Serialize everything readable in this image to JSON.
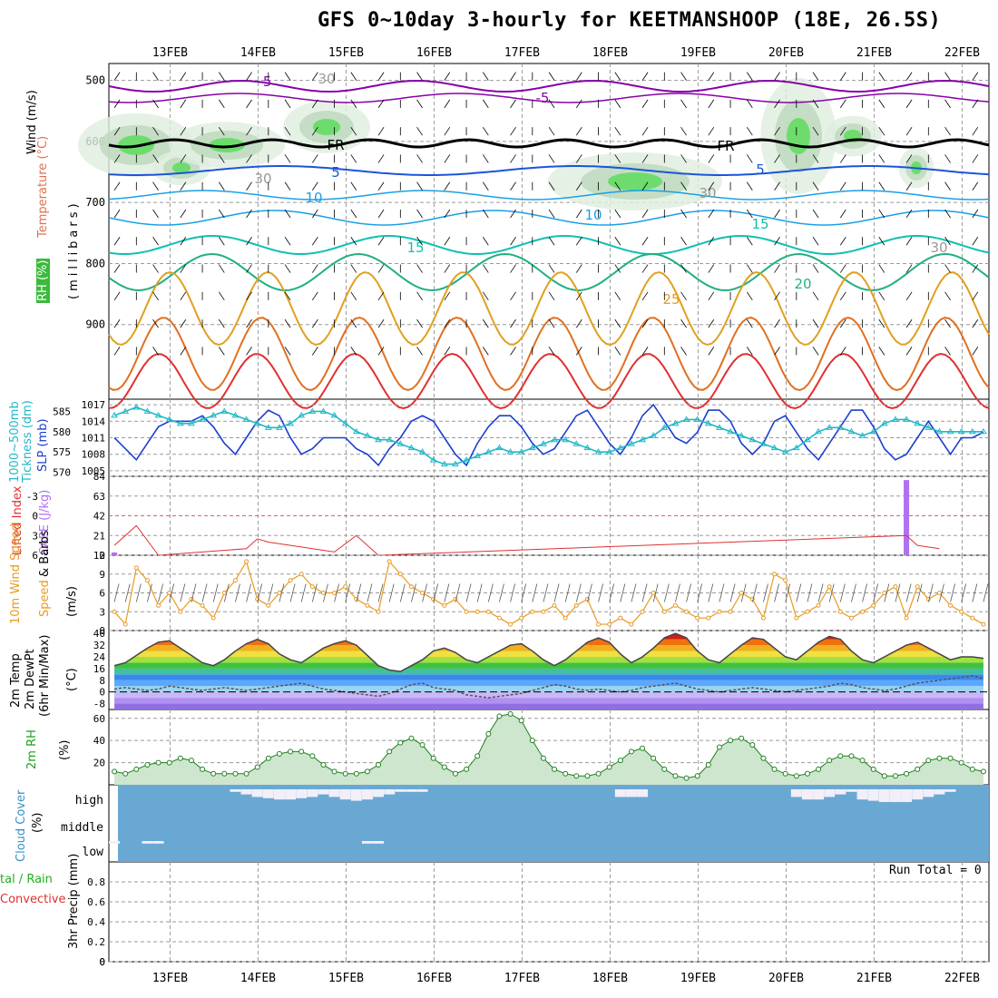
{
  "title": "GFS 0~10day 3-hourly for KEETMANSHOOP (18E, 26.5S)",
  "colors": {
    "grid": "#9a9a9a",
    "temp_cold": "#8800aa",
    "temp_5": "#1a55d9",
    "temp_10": "#1aa0e6",
    "temp_15": "#10c0b0",
    "temp_20": "#20b080",
    "temp_25": "#e0a020",
    "temp_30": "#e07020",
    "temp_35": "#e03030",
    "rh_fill": "#6ddc6d",
    "slp_line": "#1a3fcf",
    "thick_line": "#20b8c8",
    "cape_bar": "#b070f0",
    "li_line": "#e03030",
    "wind_line": "#e89a20",
    "cloud_bg": "#6aa8d4",
    "cloud_fill": "#f2eff8"
  },
  "axis": {
    "date_labels": [
      "13FEB",
      "14FEB",
      "15FEB",
      "16FEB",
      "17FEB",
      "18FEB",
      "19FEB",
      "20FEB",
      "21FEB",
      "22FEB"
    ],
    "time_steps": 80,
    "step_hours": 3
  },
  "panel_labels": {
    "upper_wind": "Wind (m/s)",
    "upper_temp": "Temperature (°C)",
    "upper_rh": "RH (%)",
    "upper_units": "(millibars)",
    "thickness": "1000~500mb Tickness (dm)",
    "slp": "SLP (mb)",
    "li": "Lifted Index",
    "cape": "CAPE (J/kg)",
    "wind10": "10m Wind Speed",
    "wind10_b": "& Barbs",
    "wind10_units": "(m/s)",
    "temp2m_a": "2m Temp",
    "temp2m_b": "2m DewPt",
    "temp2m_c": "(6hr Min/Max)",
    "temp2m_units": "(°C)",
    "rh2m": "2m RH",
    "rh2m_units": "(%)",
    "cloud": "Cloud Cover",
    "cloud_units": "(%)",
    "precip_a": "tal / Rain",
    "precip_b": "Convective",
    "precip_c": "3hr Precip (mm)",
    "run_total": "Run Total = 0"
  },
  "chart_data": [
    {
      "type": "contour",
      "name": "upper-air",
      "y_ticks": [
        500,
        600,
        700,
        800,
        900
      ],
      "ylim": [
        1000,
        450
      ],
      "contour_labels": [
        "-5",
        "-5",
        "FR",
        "FR",
        "5",
        "5",
        "10",
        "10",
        "15",
        "15",
        "20",
        "25",
        "30",
        "30",
        "30",
        "30"
      ]
    },
    {
      "type": "line",
      "name": "thickness-slp",
      "y_ticks_left": [
        570,
        575,
        580,
        585
      ],
      "y_ticks_right": [
        1005,
        1008,
        1011,
        1014,
        1017
      ],
      "series": [
        {
          "name": "SLP (mb)",
          "axis": "right",
          "values": [
            1011,
            1009,
            1007,
            1010,
            1013,
            1014,
            1014,
            1014,
            1015,
            1013,
            1010,
            1008,
            1011,
            1014,
            1016,
            1015,
            1011,
            1008,
            1009,
            1011,
            1011,
            1011,
            1009,
            1008,
            1006,
            1009,
            1011,
            1014,
            1015,
            1014,
            1011,
            1008,
            1006,
            1010,
            1013,
            1015,
            1015,
            1013,
            1010,
            1008,
            1009,
            1012,
            1015,
            1016,
            1013,
            1010,
            1008,
            1011,
            1015,
            1017,
            1014,
            1011,
            1010,
            1012,
            1016,
            1016,
            1014,
            1010,
            1008,
            1010,
            1014,
            1015,
            1012,
            1009,
            1007,
            1010,
            1013,
            1016,
            1016,
            1013,
            1009,
            1007,
            1008,
            1011,
            1014,
            1011,
            1008,
            1011,
            1011,
            1012
          ]
        },
        {
          "name": "1000~500mb Tickness (dm)",
          "axis": "left",
          "values": [
            584,
            585,
            586,
            585,
            584,
            583,
            582,
            582,
            583,
            584,
            585,
            584,
            583,
            582,
            581,
            581,
            582,
            584,
            585,
            585,
            584,
            582,
            580,
            579,
            578,
            578,
            577,
            576,
            575,
            573,
            572,
            572,
            573,
            574,
            575,
            576,
            575,
            575,
            576,
            577,
            578,
            578,
            577,
            576,
            575,
            575,
            576,
            577,
            578,
            579,
            581,
            582,
            583,
            583,
            582,
            581,
            580,
            579,
            578,
            577,
            576,
            575,
            576,
            578,
            580,
            581,
            581,
            580,
            579,
            580,
            582,
            583,
            583,
            582,
            581,
            580,
            580,
            580,
            580,
            580
          ]
        }
      ]
    },
    {
      "type": "bar",
      "name": "li-cape",
      "li_ticks": [
        6,
        3,
        0,
        -3
      ],
      "cape_ticks": [
        0,
        21,
        42,
        63,
        84
      ],
      "series": [
        {
          "name": "CAPE (J/kg)",
          "values_at_step": {
            "0": 3,
            "72": 80
          }
        },
        {
          "name": "Lifted Index",
          "values_at_step": {
            "0": 4.5,
            "2": 1.5,
            "4": 6,
            "12": 5,
            "13": 3.5,
            "14": 4,
            "20": 5.5,
            "22": 3,
            "24": 6,
            "72": 3,
            "73": 4.5,
            "75": 5
          }
        }
      ]
    },
    {
      "type": "line",
      "name": "wind10",
      "y_ticks": [
        0,
        3,
        6,
        9,
        12
      ],
      "ylim": [
        0,
        12
      ],
      "series": [
        {
          "name": "10m Wind Speed",
          "values": [
            3,
            1,
            10,
            8,
            4,
            6,
            3,
            5,
            4,
            2,
            6,
            8,
            11,
            5,
            4,
            6,
            8,
            9,
            7,
            6,
            6,
            7,
            5,
            4,
            3,
            11,
            9,
            7,
            6,
            5,
            4,
            5,
            3,
            3,
            3,
            2,
            1,
            2,
            3,
            3,
            4,
            2,
            4,
            5,
            1,
            1,
            2,
            1,
            3,
            6,
            3,
            4,
            3,
            2,
            2,
            3,
            3,
            6,
            5,
            2,
            9,
            8,
            2,
            3,
            4,
            7,
            3,
            2,
            3,
            4,
            6,
            7,
            2,
            7,
            5,
            6,
            4,
            3,
            2,
            1
          ]
        }
      ]
    },
    {
      "type": "area",
      "name": "temp2m",
      "y_ticks": [
        -8,
        0,
        8,
        16,
        24,
        32,
        40
      ],
      "ylim": [
        -12,
        42
      ],
      "series": [
        {
          "name": "2m Temp",
          "values": [
            18,
            20,
            25,
            30,
            34,
            35,
            30,
            25,
            20,
            18,
            22,
            28,
            33,
            36,
            33,
            26,
            22,
            20,
            25,
            30,
            33,
            35,
            32,
            25,
            18,
            15,
            14,
            18,
            22,
            28,
            30,
            27,
            22,
            20,
            24,
            28,
            32,
            33,
            28,
            22,
            18,
            22,
            28,
            34,
            37,
            34,
            26,
            20,
            24,
            30,
            37,
            40,
            37,
            28,
            22,
            20,
            26,
            32,
            37,
            36,
            30,
            24,
            22,
            28,
            34,
            38,
            36,
            28,
            22,
            20,
            24,
            28,
            32,
            34,
            30,
            26,
            22,
            24,
            24,
            23
          ]
        },
        {
          "name": "2m DewPt",
          "values": [
            2,
            3,
            2,
            1,
            2,
            4,
            3,
            2,
            1,
            2,
            3,
            2,
            1,
            2,
            3,
            4,
            5,
            6,
            4,
            2,
            1,
            0,
            -1,
            -2,
            -3,
            -1,
            2,
            5,
            6,
            3,
            2,
            1,
            -2,
            -3,
            -4,
            -3,
            -2,
            -1,
            1,
            3,
            5,
            4,
            2,
            1,
            2,
            1,
            0,
            1,
            3,
            4,
            5,
            6,
            4,
            2,
            1,
            0,
            1,
            2,
            3,
            2,
            1,
            0,
            1,
            2,
            3,
            4,
            6,
            5,
            3,
            2,
            1,
            2,
            4,
            6,
            7,
            8,
            9,
            10,
            11,
            9
          ]
        }
      ]
    },
    {
      "type": "area",
      "name": "rh2m",
      "y_ticks": [
        20,
        40,
        60
      ],
      "ylim": [
        0,
        68
      ],
      "series": [
        {
          "name": "2m RH",
          "values": [
            12,
            10,
            14,
            18,
            20,
            20,
            24,
            22,
            14,
            10,
            10,
            10,
            10,
            16,
            24,
            28,
            30,
            30,
            26,
            18,
            12,
            10,
            10,
            12,
            18,
            30,
            38,
            42,
            36,
            24,
            16,
            10,
            14,
            26,
            46,
            62,
            64,
            58,
            40,
            24,
            14,
            10,
            8,
            8,
            10,
            16,
            22,
            30,
            33,
            24,
            14,
            8,
            6,
            8,
            18,
            34,
            40,
            42,
            36,
            24,
            14,
            10,
            8,
            10,
            14,
            22,
            26,
            26,
            22,
            14,
            8,
            8,
            10,
            14,
            22,
            24,
            24,
            20,
            14,
            12
          ]
        }
      ]
    },
    {
      "type": "bar",
      "name": "cloud",
      "levels": [
        "high",
        "middle",
        "low"
      ],
      "series": [
        {
          "name": "high",
          "values": [
            0,
            0,
            0,
            0,
            0,
            0,
            0,
            0,
            0,
            0,
            0,
            10,
            20,
            30,
            35,
            40,
            40,
            35,
            30,
            20,
            30,
            40,
            45,
            40,
            30,
            20,
            10,
            10,
            10,
            0,
            0,
            0,
            0,
            0,
            0,
            0,
            0,
            0,
            0,
            0,
            0,
            0,
            0,
            0,
            0,
            0,
            30,
            30,
            30,
            0,
            0,
            0,
            0,
            0,
            0,
            0,
            0,
            0,
            0,
            0,
            0,
            0,
            30,
            40,
            40,
            30,
            20,
            10,
            40,
            45,
            50,
            50,
            50,
            40,
            30,
            20,
            10,
            0,
            0,
            0
          ]
        },
        {
          "name": "middle",
          "values": [
            0,
            0,
            0,
            0,
            0,
            0,
            0,
            0,
            0,
            0,
            0,
            0,
            0,
            0,
            0,
            0,
            0,
            0,
            0,
            0,
            0,
            0,
            0,
            0,
            0,
            0,
            0,
            0,
            0,
            0,
            0,
            0,
            0,
            0,
            0,
            0,
            0,
            0,
            0,
            0,
            0,
            0,
            0,
            0,
            0,
            0,
            0,
            0,
            0,
            0,
            0,
            0,
            0,
            0,
            0,
            0,
            0,
            0,
            0,
            0,
            0,
            0,
            0,
            0,
            0,
            0,
            0,
            0,
            0,
            0,
            0,
            0,
            0,
            0,
            0,
            0,
            0,
            0,
            0,
            0
          ]
        },
        {
          "name": "low",
          "values": [
            10,
            0,
            0,
            10,
            10,
            0,
            0,
            0,
            0,
            0,
            0,
            0,
            0,
            0,
            0,
            0,
            0,
            0,
            0,
            0,
            0,
            0,
            0,
            10,
            10,
            0,
            0,
            0,
            0,
            0,
            0,
            0,
            0,
            0,
            0,
            0,
            0,
            0,
            0,
            0,
            0,
            0,
            0,
            0,
            0,
            0,
            0,
            0,
            0,
            0,
            0,
            0,
            0,
            0,
            0,
            0,
            0,
            0,
            0,
            0,
            0,
            0,
            0,
            0,
            0,
            0,
            0,
            0,
            0,
            0,
            0,
            0,
            0,
            0,
            0,
            0,
            0,
            0,
            0,
            0
          ]
        }
      ]
    },
    {
      "type": "bar",
      "name": "precip",
      "y_ticks": [
        0,
        0.2,
        0.4,
        0.6,
        0.8
      ],
      "ylim": [
        0,
        1
      ],
      "series": [
        {
          "name": "3hr Precip (mm)",
          "values": []
        }
      ]
    }
  ]
}
